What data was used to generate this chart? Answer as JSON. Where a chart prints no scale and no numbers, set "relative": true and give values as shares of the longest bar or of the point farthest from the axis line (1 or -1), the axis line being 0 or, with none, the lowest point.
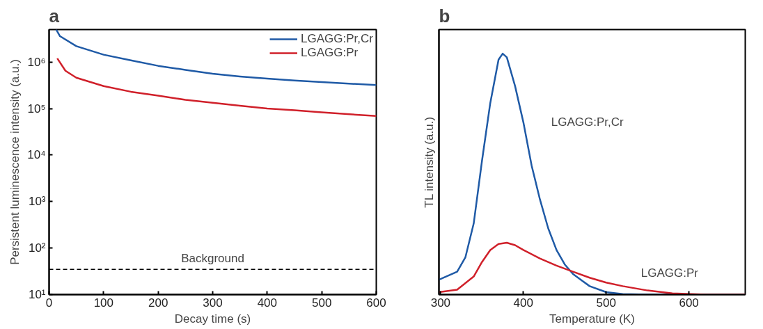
{
  "chart_data": [
    {
      "type": "line",
      "title": "a",
      "xlabel": "Decay time (s)",
      "ylabel": "Persistent luminescence intensity (a.u.)",
      "log": "y",
      "xlim": [
        0,
        600
      ],
      "xticks": [
        0,
        100,
        200,
        300,
        400,
        500,
        600
      ],
      "ylim": [
        10,
        5000000
      ],
      "yticks": [
        {
          "value": 10,
          "label": "10¹"
        },
        {
          "value": 100,
          "label": "10²"
        },
        {
          "value": 1000,
          "label": "10³"
        },
        {
          "value": 10000,
          "label": "10⁴"
        },
        {
          "value": 100000,
          "label": "10⁵"
        },
        {
          "value": 1000000,
          "label": "10⁶"
        }
      ],
      "grid": false,
      "legend": "top right",
      "line_style": "solid",
      "marker": "none",
      "series": [
        {
          "name": "LGAGG:Pr,Cr",
          "color": "#1f5aa6",
          "x": [
            13,
            20,
            50,
            100,
            150,
            200,
            250,
            300,
            350,
            400,
            450,
            500,
            600
          ],
          "values": [
            5000000,
            3600000,
            2200000,
            1440000,
            1090000,
            830000,
            680000,
            560000,
            490000,
            440000,
            400000,
            370000,
            320000
          ]
        },
        {
          "name": "LGAGG:Pr",
          "color": "#d0202a",
          "x": [
            15,
            30,
            50,
            100,
            150,
            200,
            250,
            300,
            350,
            400,
            450,
            500,
            600
          ],
          "values": [
            1200000,
            650000,
            460000,
            305000,
            230000,
            190000,
            154000,
            133000,
            115000,
            100000,
            92000,
            83000,
            69000
          ]
        }
      ],
      "ref_lines": [
        {
          "axis": "y",
          "value": 35,
          "label": "Background",
          "color": "#000000",
          "line_style": "dashed"
        }
      ]
    },
    {
      "type": "line",
      "title": "b",
      "xlabel": "Temperature (K)",
      "ylabel": "TL intensity (a.u.)",
      "relative": true,
      "xlim": [
        298,
        668
      ],
      "xticks": [
        300,
        400,
        500,
        600
      ],
      "grid": false,
      "legend": false,
      "line_style": "solid",
      "marker": "none",
      "series": [
        {
          "name": "LGAGG:Pr,Cr",
          "color": "#1f5aa6",
          "x": [
            298,
            320,
            330,
            340,
            350,
            360,
            370,
            375,
            380,
            390,
            400,
            410,
            420,
            430,
            440,
            450,
            460,
            470,
            480,
            500,
            520,
            550,
            668
          ],
          "values": [
            0.062,
            0.095,
            0.155,
            0.295,
            0.555,
            0.795,
            0.975,
            1.0,
            0.985,
            0.865,
            0.715,
            0.535,
            0.395,
            0.275,
            0.185,
            0.125,
            0.085,
            0.06,
            0.035,
            0.01,
            0.002,
            0,
            0
          ]
        },
        {
          "name": "LGAGG:Pr",
          "color": "#d0202a",
          "x": [
            298,
            320,
            340,
            350,
            360,
            370,
            380,
            390,
            400,
            420,
            440,
            460,
            480,
            500,
            520,
            550,
            580,
            620,
            668
          ],
          "values": [
            0.01,
            0.02,
            0.075,
            0.135,
            0.185,
            0.21,
            0.215,
            0.205,
            0.185,
            0.15,
            0.12,
            0.095,
            0.07,
            0.05,
            0.035,
            0.017,
            0.005,
            0,
            0
          ]
        }
      ]
    }
  ]
}
